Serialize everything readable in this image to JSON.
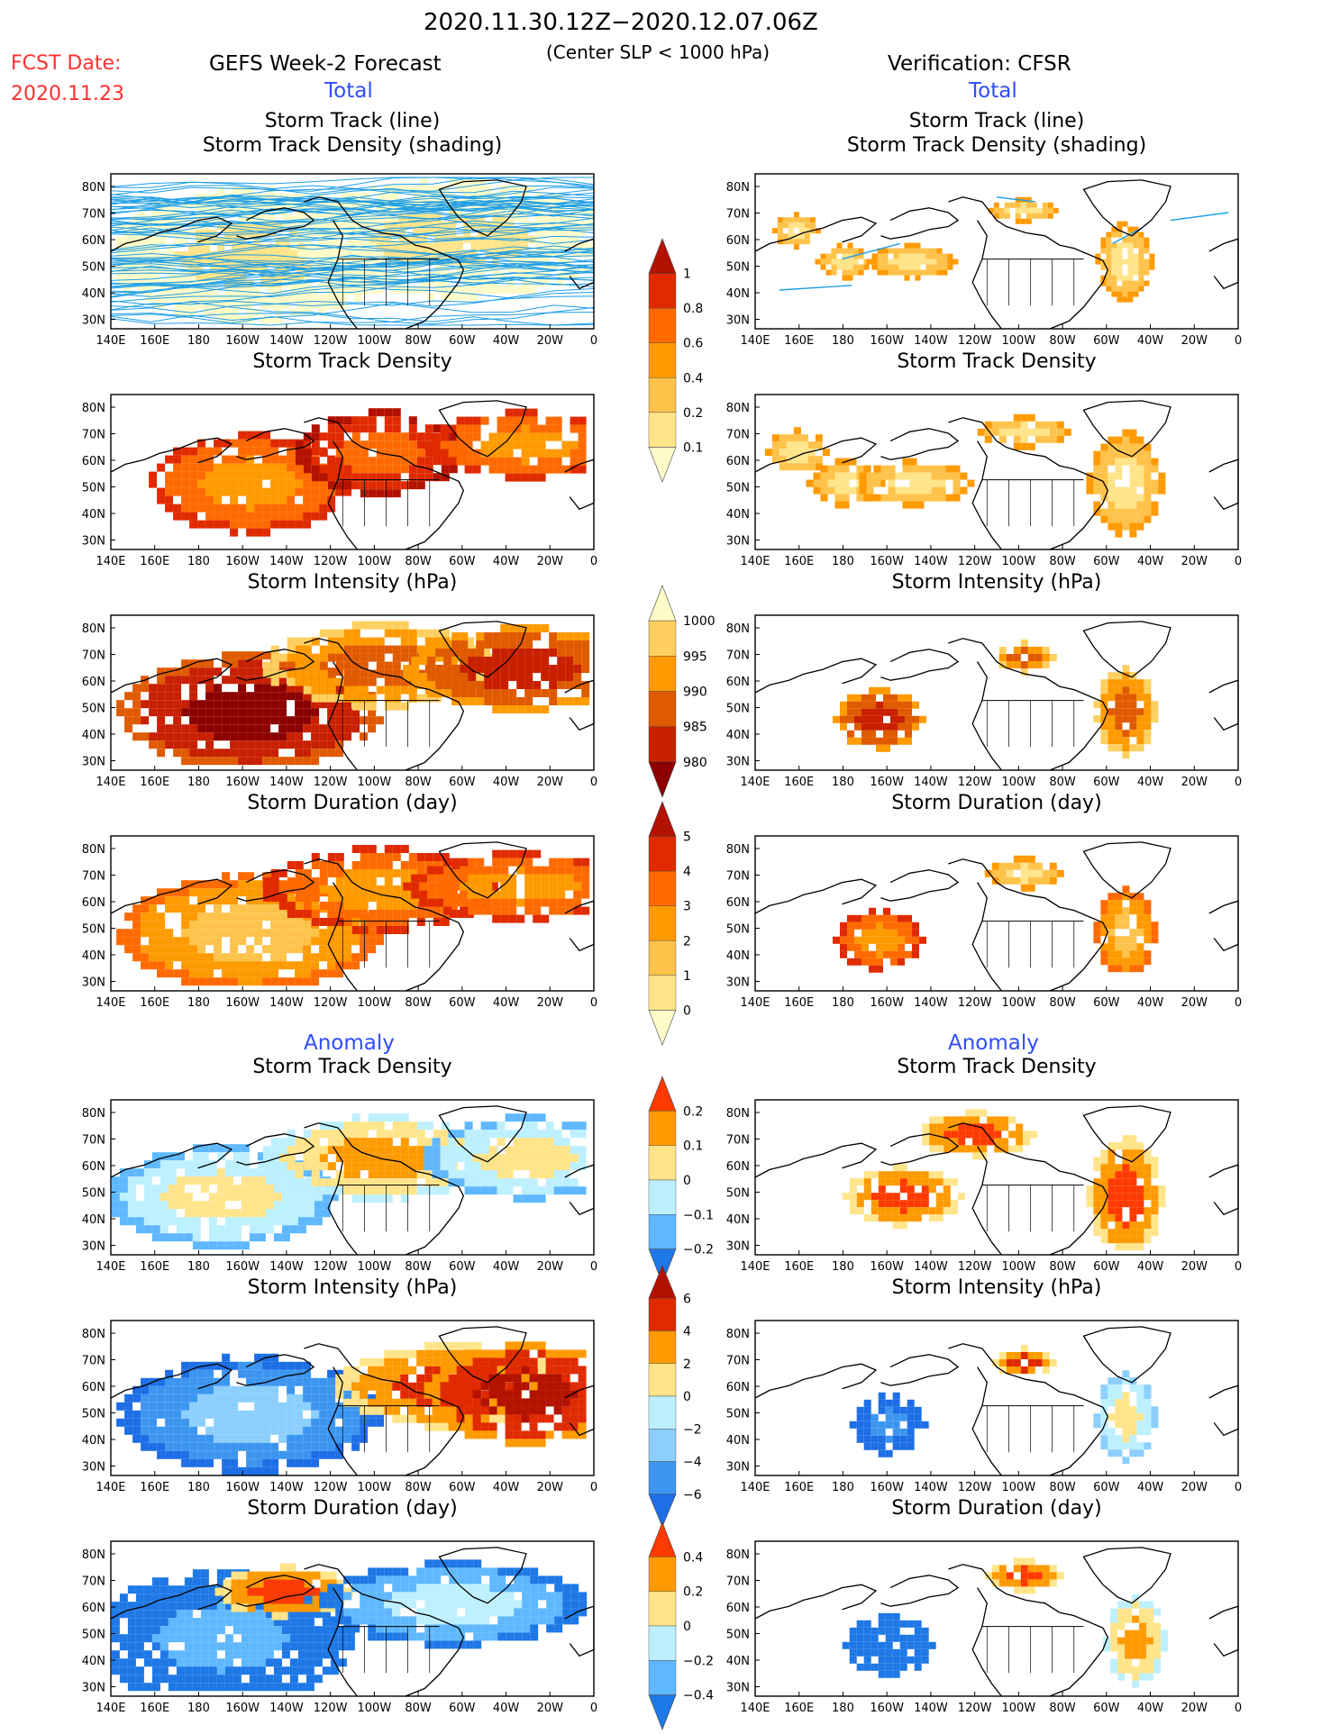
{
  "header": {
    "period": "2020.11.30.12Z−2020.12.07.06Z",
    "condition": "(Center SLP < 1000 hPa)",
    "fcst_label": "FCST Date:",
    "fcst_date": "2020.11.23",
    "left_title": "GEFS Week-2 Forecast",
    "right_title": "Verification: CFSR",
    "total_label": "Total",
    "anomaly_label": "Anomaly"
  },
  "panels": {
    "track_title_1": "Storm Track (line)",
    "track_title_2": "Storm Track Density (shading)",
    "density": "Storm Track Density",
    "intensity": "Storm Intensity (hPa)",
    "duration": "Storm Duration (day)"
  },
  "axes": {
    "lon_labels": [
      "140E",
      "160E",
      "180",
      "160W",
      "140W",
      "120W",
      "100W",
      "80W",
      "60W",
      "40W",
      "20W",
      "0"
    ],
    "lat_labels": [
      "80N",
      "70N",
      "60N",
      "50N",
      "40N",
      "30N"
    ]
  },
  "colorbars": {
    "density_total": {
      "labels": [
        "1",
        "0.8",
        "0.6",
        "0.4",
        "0.2",
        "0.1"
      ],
      "colors": [
        "#b31200",
        "#e02a00",
        "#ff6a00",
        "#ff9a00",
        "#ffc24a",
        "#ffe48a",
        "#fffbc8"
      ]
    },
    "intensity_total": {
      "labels": [
        "1000",
        "995",
        "990",
        "985",
        "980"
      ],
      "colors": [
        "#fffbc8",
        "#ffd060",
        "#ff9a00",
        "#e05a00",
        "#c82000",
        "#8c0000"
      ]
    },
    "duration_total": {
      "labels": [
        "5",
        "4",
        "3",
        "2",
        "1",
        "0"
      ],
      "colors": [
        "#b31200",
        "#e02a00",
        "#ff6a00",
        "#ff9a00",
        "#ffc24a",
        "#ffe48a",
        "#fffbc8"
      ]
    },
    "density_anom": {
      "labels": [
        "0.2",
        "0.1",
        "0",
        "−0.1",
        "−0.2"
      ],
      "colors": [
        "#ff3a00",
        "#ff9a00",
        "#ffe48a",
        "#bdf0ff",
        "#5fb8ff",
        "#1e78e6"
      ]
    },
    "intensity_anom": {
      "labels": [
        "6",
        "4",
        "2",
        "0",
        "−2",
        "−4",
        "−6"
      ],
      "colors": [
        "#b31200",
        "#e02a00",
        "#ff9a00",
        "#ffe48a",
        "#bdf0ff",
        "#8ccfff",
        "#3c96f0",
        "#1e6ee6"
      ]
    },
    "duration_anom": {
      "labels": [
        "0.4",
        "0.2",
        "0",
        "−0.2",
        "−0.4"
      ],
      "colors": [
        "#ff3a00",
        "#ff9a00",
        "#ffe48a",
        "#bdf0ff",
        "#5fb8ff",
        "#1e78e6"
      ]
    }
  }
}
